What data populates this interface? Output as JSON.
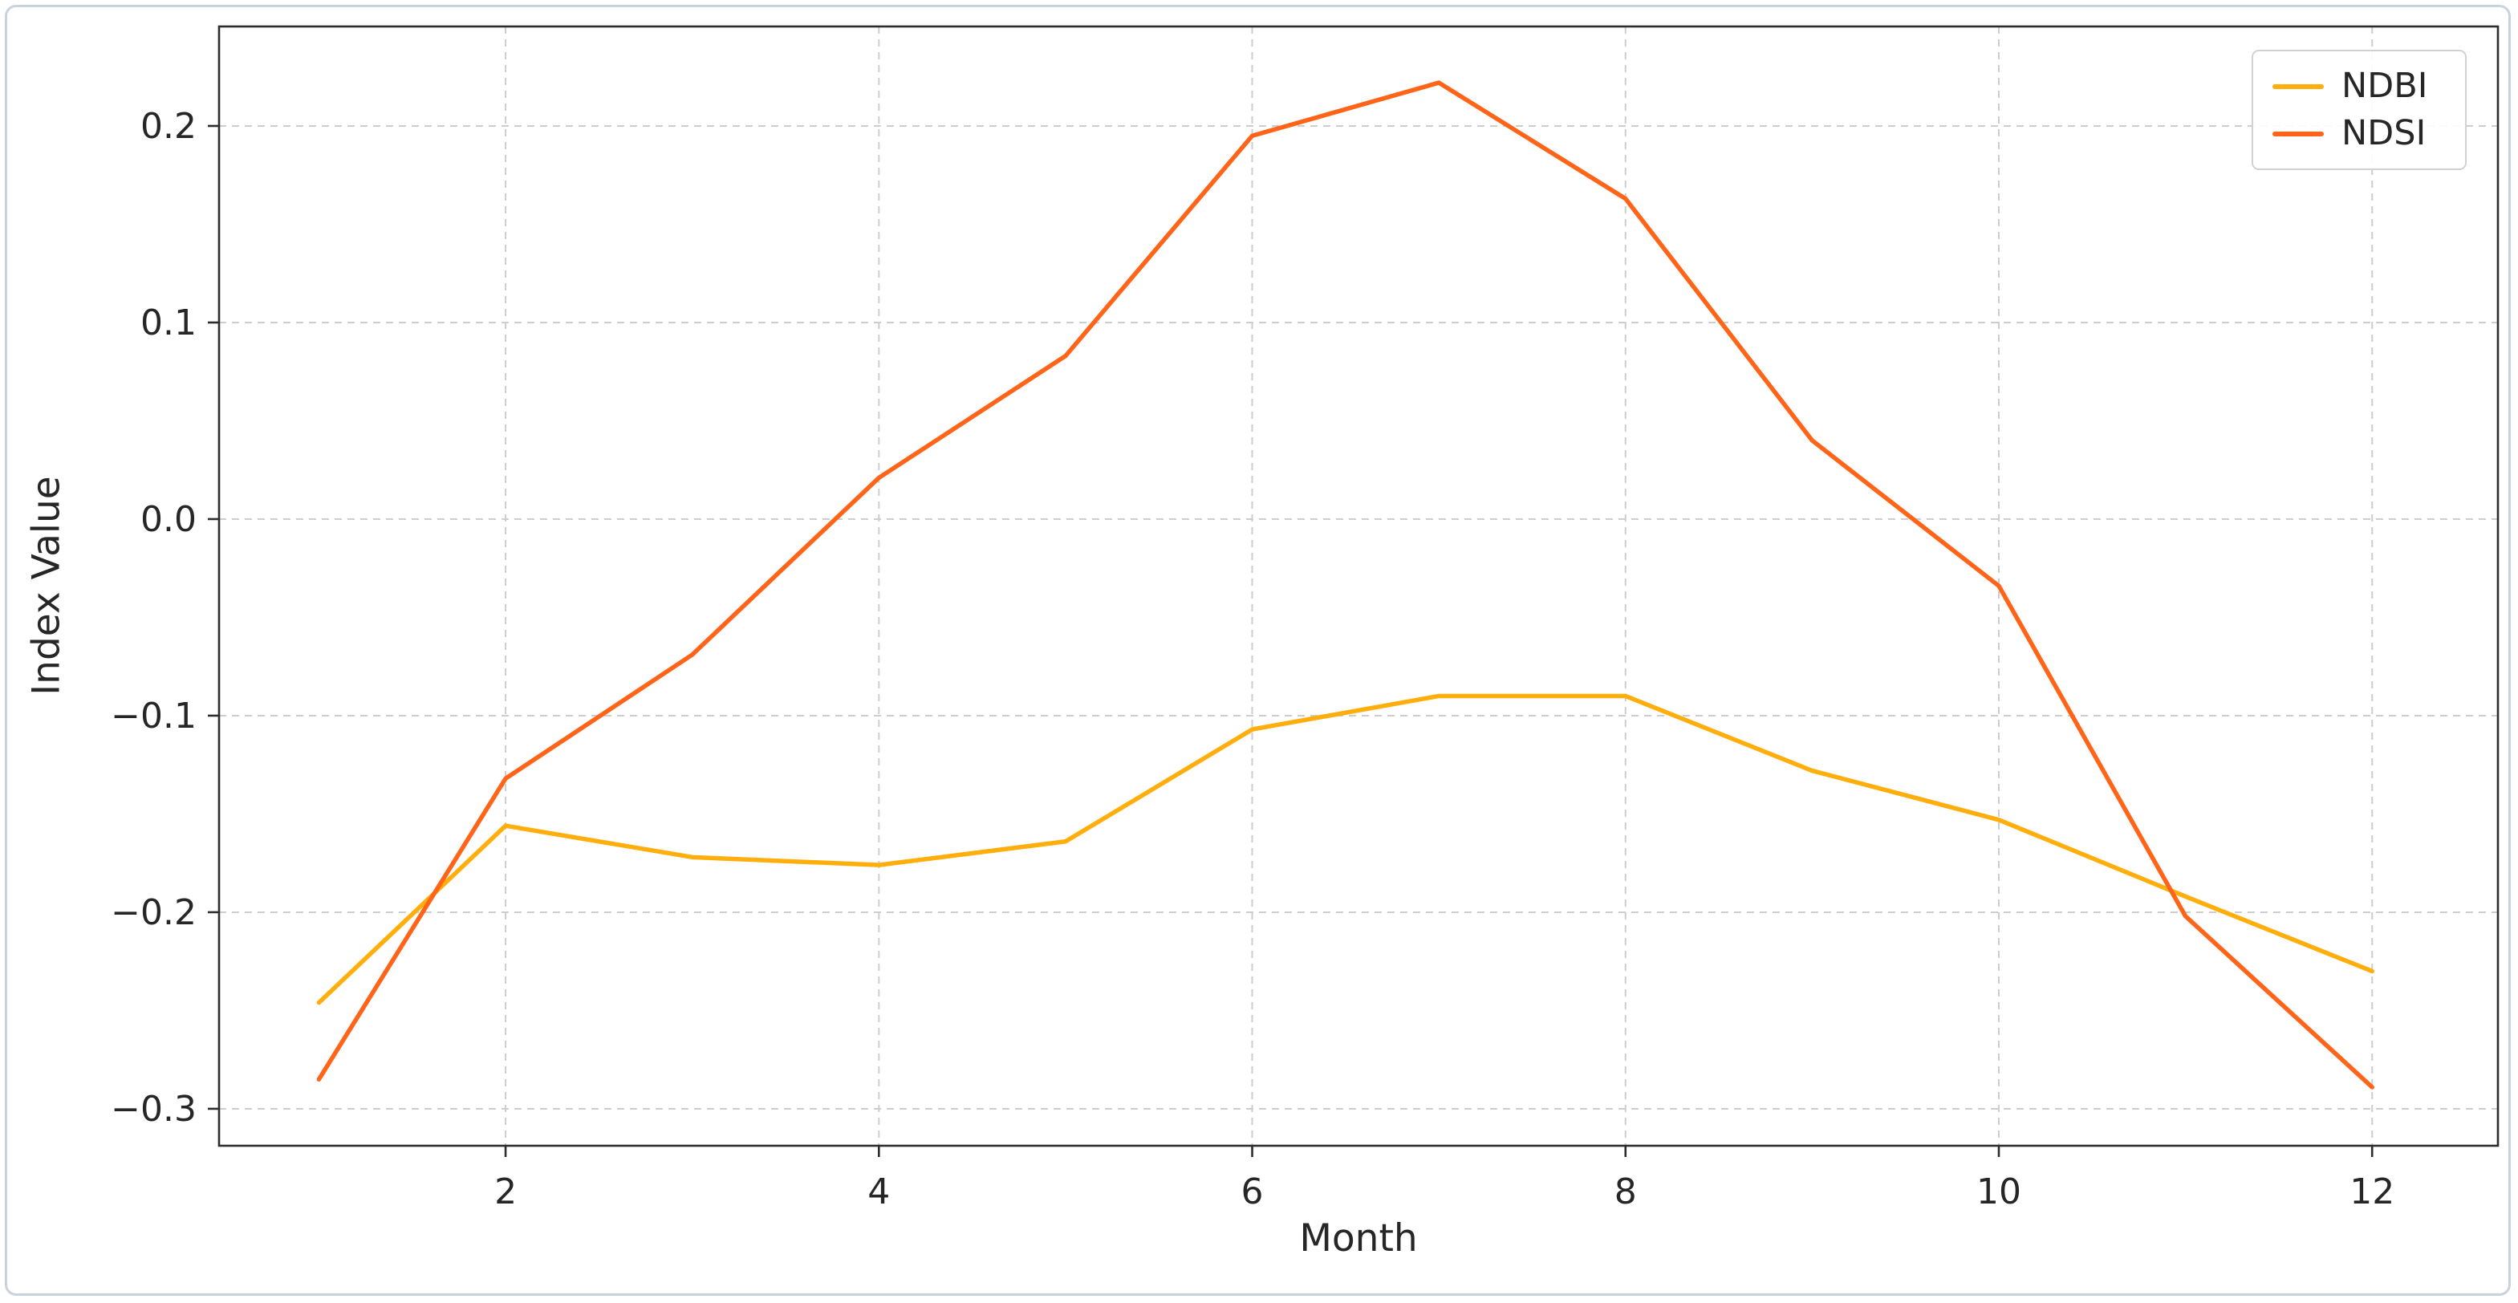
{
  "figure": {
    "background": "#ffffff",
    "border_color": "#c9d3de",
    "grid_color": "#cdcdcd",
    "spine_color": "#2d2d2d",
    "tick_color": "#2d2d2d",
    "text_color": "#262626"
  },
  "legend": {
    "entries": [
      {
        "label": "NDBI",
        "color": "#ffae0c"
      },
      {
        "label": "NDSI",
        "color": "#ff6418"
      }
    ]
  },
  "chart_data": {
    "type": "line",
    "title": "",
    "xlabel": "Month",
    "ylabel": "Index Value",
    "x": [
      1,
      2,
      3,
      4,
      5,
      6,
      7,
      8,
      9,
      10,
      11,
      12
    ],
    "series": [
      {
        "name": "NDBI",
        "color": "#ffae0c",
        "values": [
          -0.246,
          -0.156,
          -0.172,
          -0.176,
          -0.164,
          -0.107,
          -0.09,
          -0.09,
          -0.128,
          -0.153,
          -0.192,
          -0.23
        ]
      },
      {
        "name": "NDSI",
        "color": "#ff6418",
        "values": [
          -0.285,
          -0.132,
          -0.069,
          0.021,
          0.083,
          0.195,
          0.222,
          0.163,
          0.04,
          -0.034,
          -0.202,
          -0.289
        ]
      }
    ],
    "xticks": [
      2,
      4,
      6,
      8,
      10,
      12
    ],
    "yticks": [
      0.2,
      0.1,
      0.0,
      -0.1,
      -0.2,
      -0.3
    ],
    "xlim": [
      0.465,
      12.674
    ],
    "ylim": [
      -0.3188,
      0.2506
    ],
    "grid": true,
    "grid_style": "dashed",
    "legend_position": "upper right"
  }
}
